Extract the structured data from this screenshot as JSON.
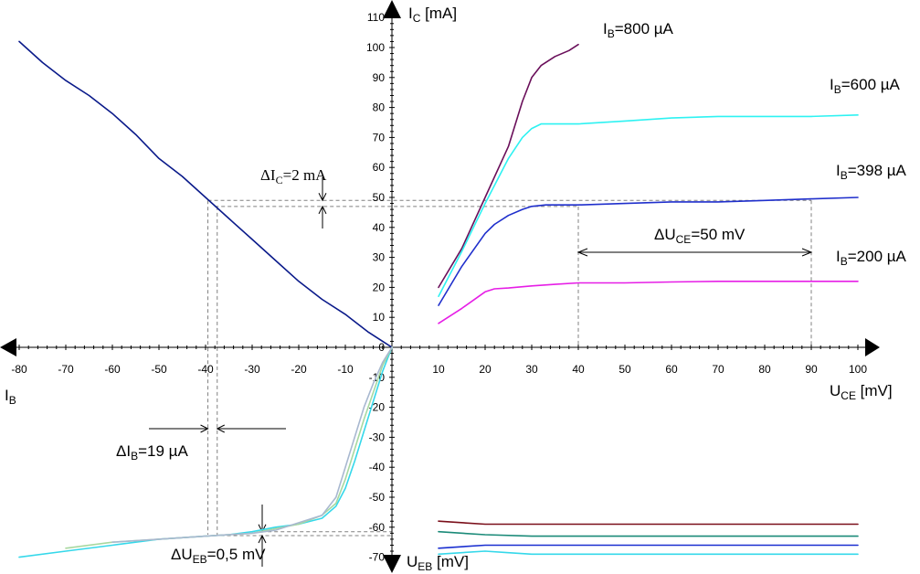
{
  "chart_data": {
    "type": "line",
    "colors": {
      "axis": "#000000",
      "ib800": "#6a0f5a",
      "ib600": "#2ef2f2",
      "ib398": "#1f2fcc",
      "ib200": "#e61ee6",
      "input_curve": "#0a1a8a",
      "ueb1": "#7a0f1a",
      "ueb2": "#1a8a78",
      "ueb3": "#1a2fd0",
      "ueb4": "#35d8ea",
      "guide": "#808080"
    },
    "axes": {
      "ic_label": "I",
      "ic_sub": "C",
      "ic_unit": " [mA]",
      "uce_label": "U",
      "uce_sub": "CE",
      "uce_unit": " [mV]",
      "ib_label": "I",
      "ib_sub": "B",
      "ueb_label": "U",
      "ueb_sub": "EB",
      "ueb_unit": " [mV]",
      "x_pos_ticks": [
        10,
        20,
        30,
        40,
        50,
        60,
        70,
        80,
        90,
        100
      ],
      "x_neg_ticks": [
        -80,
        -70,
        -60,
        -50,
        -40,
        -30,
        -20,
        -10,
        0
      ],
      "y_pos_ticks": [
        10,
        20,
        30,
        40,
        50,
        60,
        70,
        80,
        90,
        100,
        110
      ],
      "y_neg_ticks": [
        -10,
        -20,
        -30,
        -40,
        -50,
        -60,
        -70
      ],
      "zero_label": "0"
    },
    "output_series": [
      {
        "name_main": "I",
        "name_sub": "B",
        "name_rest": "=800 µA",
        "color_key": "ib800",
        "x": [
          10,
          15,
          20,
          25,
          28,
          30,
          32,
          35,
          38,
          40
        ],
        "y": [
          20,
          33,
          50,
          67,
          82,
          90,
          94,
          97,
          99,
          101
        ]
      },
      {
        "name_main": "I",
        "name_sub": "B",
        "name_rest": "=600 µA",
        "color_key": "ib600",
        "x": [
          10,
          15,
          20,
          25,
          28,
          30,
          32,
          35,
          40,
          50,
          60,
          70,
          80,
          90,
          100
        ],
        "y": [
          17,
          32,
          48,
          63,
          70,
          73,
          74.5,
          74.5,
          74.5,
          75.5,
          76.5,
          77,
          77,
          77,
          77.5
        ]
      },
      {
        "name_main": "I",
        "name_sub": "B",
        "name_rest": "=398 µA",
        "color_key": "ib398",
        "x": [
          10,
          15,
          20,
          22,
          25,
          28,
          30,
          33,
          35,
          40,
          50,
          60,
          70,
          80,
          90,
          100
        ],
        "y": [
          14,
          27,
          38,
          41,
          44,
          46,
          47,
          47.5,
          47.5,
          47.5,
          48,
          48.5,
          48.5,
          49,
          49.5,
          50
        ]
      },
      {
        "name_main": "I",
        "name_sub": "B",
        "name_rest": "=200 µA",
        "color_key": "ib200",
        "x": [
          10,
          15,
          20,
          22,
          25,
          30,
          35,
          40,
          50,
          60,
          70,
          80,
          90,
          100
        ],
        "y": [
          8,
          13,
          18.5,
          19.5,
          19.8,
          20.5,
          21,
          21.5,
          21.5,
          21.8,
          22,
          22,
          22,
          22
        ]
      }
    ],
    "input_series": {
      "color_key": "input_curve",
      "x": [
        -80,
        -75,
        -70,
        -65,
        -60,
        -55,
        -50,
        -45,
        -40,
        -35,
        -30,
        -25,
        -20,
        -15,
        -10,
        -5,
        -2,
        0
      ],
      "y": [
        102,
        95,
        89,
        84,
        78,
        71,
        63,
        57,
        50,
        43,
        36,
        29,
        22,
        16,
        11,
        5,
        2,
        0
      ]
    },
    "transfer_series": [
      {
        "color": "#35d8ea",
        "x": [
          -80,
          -70,
          -60,
          -50,
          -40,
          -35,
          -30,
          -25,
          -20,
          -15,
          -12,
          -10,
          -8,
          -6,
          -4,
          -2,
          0
        ],
        "y": [
          -70,
          -68,
          -66,
          -64,
          -63,
          -62.5,
          -61.5,
          -60,
          -59,
          -57,
          -53,
          -47,
          -38,
          -28,
          -18,
          -8,
          0
        ]
      },
      {
        "color": "#a8d8a0",
        "x": [
          -70,
          -60,
          -50,
          -40,
          -30,
          -25,
          -20,
          -15,
          -12,
          -10,
          -8,
          -6,
          -4,
          -2,
          0
        ],
        "y": [
          -67,
          -65,
          -64,
          -63,
          -62,
          -60.5,
          -59,
          -56,
          -52,
          -44,
          -34,
          -24,
          -15,
          -6,
          0
        ]
      },
      {
        "color": "#a8b8d0",
        "x": [
          -60,
          -50,
          -40,
          -30,
          -25,
          -20,
          -15,
          -12,
          -10,
          -8,
          -6,
          -4,
          -2,
          0
        ],
        "y": [
          -65,
          -64,
          -63,
          -62,
          -61,
          -58.5,
          -56,
          -50,
          -40,
          -30,
          -20,
          -12,
          -5,
          0
        ]
      }
    ],
    "ueb_series": [
      {
        "color_key": "ueb1",
        "x": [
          10,
          20,
          30,
          40,
          100
        ],
        "y": [
          -58,
          -59,
          -59,
          -59,
          -59
        ]
      },
      {
        "color_key": "ueb2",
        "x": [
          10,
          20,
          30,
          40,
          100
        ],
        "y": [
          -61.5,
          -62.5,
          -63,
          -63,
          -63
        ]
      },
      {
        "color_key": "ueb3",
        "x": [
          10,
          20,
          30,
          40,
          100
        ],
        "y": [
          -67,
          -66,
          -66,
          -66,
          -66
        ]
      },
      {
        "color_key": "ueb4",
        "x": [
          10,
          20,
          25,
          30,
          40,
          100
        ],
        "y": [
          -69,
          -68,
          -68.5,
          -69,
          -69,
          -69
        ]
      }
    ],
    "annotations": {
      "delta_ic": {
        "prefix": "ΔI",
        "sub": "C",
        "rest": "=2 mA"
      },
      "delta_uce": {
        "prefix": "ΔU",
        "sub": "CE",
        "rest": "=50 mV"
      },
      "delta_ib": {
        "prefix": "ΔI",
        "sub": "B",
        "rest": "=19 µA"
      },
      "delta_ueb": {
        "prefix": "ΔU",
        "sub": "EB",
        "rest": "=0,5 mV"
      }
    }
  }
}
